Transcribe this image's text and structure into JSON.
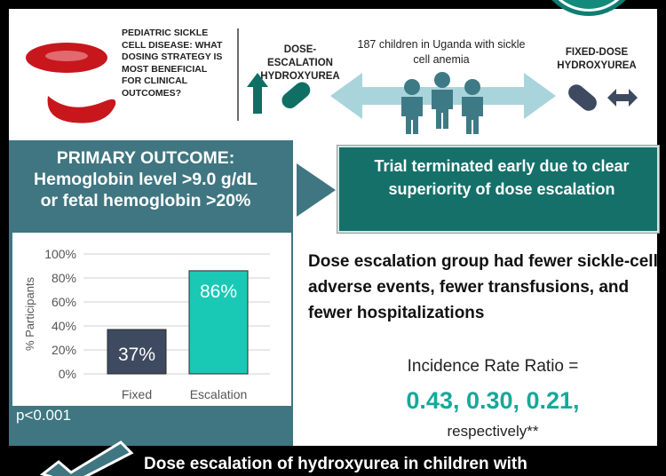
{
  "question": "PEDIATRIC SICKLE CELL DISEASE: WHAT DOSING STRATEGY IS MOST BENEFICIAL FOR CLINICAL OUTCOMES?",
  "dose_escalation_label": "DOSE-ESCALATION HYDROXYUREA",
  "fixed_dose_label": "FIXED-DOSE HYDROXYUREA",
  "population": "187 children in Uganda with sickle cell anemia",
  "primary_outcome": {
    "heading": "PRIMARY OUTCOME:",
    "line1": "Hemoglobin level >9.0 g/dL",
    "line2": "or fetal hemoglobin >20%"
  },
  "trial_status": "Trial terminated early due to clear superiority of dose escalation",
  "results": "Dose escalation group had fewer sickle-cell adverse events, fewer transfusions, and fewer hospitalizations",
  "irr": {
    "label": "Incidence Rate Ratio =",
    "values": "0.43, 0.30, 0.21,",
    "note": "respectively**"
  },
  "pvalue": "p<0.001",
  "conclusion": "Dose escalation of hydroxyurea in children with",
  "colors": {
    "teal_dark": "#16706a",
    "slate": "#3f7681",
    "bar_fixed": "#3e4a60",
    "bar_escalation": "#19c9b5",
    "accent_value": "#17a89a"
  },
  "chart_data": {
    "type": "bar",
    "categories": [
      "Fixed",
      "Escalation"
    ],
    "values": [
      37,
      86
    ],
    "data_labels": [
      "37%",
      "86%"
    ],
    "ylabel": "% Participants",
    "ylim": [
      0,
      100
    ],
    "yticks": [
      "0%",
      "20%",
      "40%",
      "60%",
      "80%",
      "100%"
    ],
    "grid": true
  }
}
